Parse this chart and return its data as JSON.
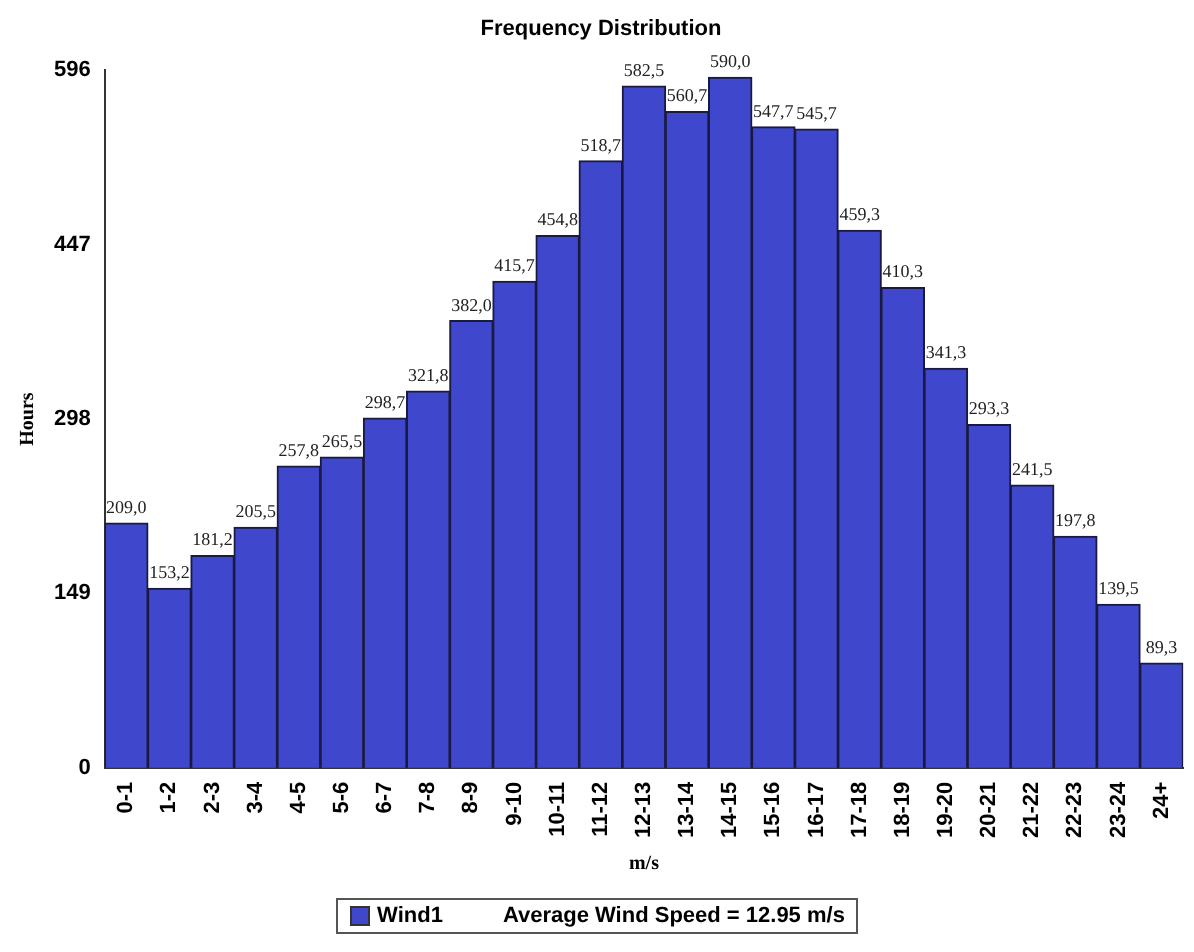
{
  "chart_data": {
    "type": "bar",
    "title": "Frequency Distribution",
    "xlabel": "m/s",
    "ylabel": "Hours",
    "categories": [
      "0-1",
      "1-2",
      "2-3",
      "3-4",
      "4-5",
      "5-6",
      "6-7",
      "7-8",
      "8-9",
      "9-10",
      "10-11",
      "11-12",
      "12-13",
      "13-14",
      "14-15",
      "15-16",
      "16-17",
      "17-18",
      "18-19",
      "19-20",
      "20-21",
      "21-22",
      "22-23",
      "23-24",
      "24+"
    ],
    "series": [
      {
        "name": "Wind1",
        "color": "#3f48cc",
        "values": [
          209.0,
          153.2,
          181.2,
          205.5,
          257.8,
          265.5,
          298.7,
          321.8,
          382.0,
          415.7,
          454.8,
          518.7,
          582.5,
          560.7,
          590.0,
          547.7,
          545.7,
          459.3,
          410.3,
          341.3,
          293.3,
          241.5,
          197.8,
          139.5,
          89.3
        ],
        "value_labels": [
          "209,0",
          "153,2",
          "181,2",
          "205,5",
          "257,8",
          "265,5",
          "298,7",
          "321,8",
          "382,0",
          "415,7",
          "454,8",
          "518,7",
          "582,5",
          "560,7",
          "590,0",
          "547,7",
          "545,7",
          "459,3",
          "410,3",
          "341,3",
          "293,3",
          "241,5",
          "197,8",
          "139,5",
          "89,3"
        ]
      }
    ],
    "ylim": [
      0,
      596
    ],
    "yticks": [
      0,
      149,
      298,
      447,
      596
    ],
    "grid": false,
    "legend": "bottom",
    "annotations": [
      "Average Wind Speed = 12.95 m/s"
    ]
  }
}
